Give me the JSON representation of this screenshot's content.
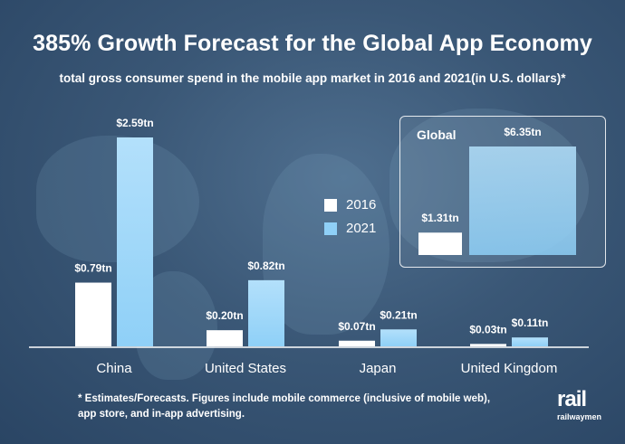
{
  "title": "385% Growth Forecast for the Global App Economy",
  "subtitle": "total gross consumer spend in the mobile app market in 2016 and 2021(in U.S. dollars)*",
  "footnote_line1": "* Estimates/Forecasts. Figures include mobile commerce (inclusive of mobile web),",
  "footnote_line2": "app store, and in-app advertising.",
  "logo": {
    "mark": "rail",
    "text": "railwaymen"
  },
  "colors": {
    "y2016": "#ffffff",
    "y2021": "#8fd0f7",
    "y2021_top": "#b3e0fb"
  },
  "chart_data": [
    {
      "type": "bar",
      "title": "",
      "categories": [
        "China",
        "United States",
        "Japan",
        "United Kingdom"
      ],
      "series": [
        {
          "name": "2016",
          "values": [
            0.79,
            0.2,
            0.07,
            0.03
          ],
          "labels": [
            "$0.79tn",
            "$0.20tn",
            "$0.07tn",
            "$0.03tn"
          ]
        },
        {
          "name": "2021",
          "values": [
            2.59,
            0.82,
            0.21,
            0.11
          ],
          "labels": [
            "$2.59tn",
            "$0.82tn",
            "$0.21tn",
            "$0.11tn"
          ]
        }
      ],
      "ylim": [
        0,
        2.59
      ],
      "legend": "center-right",
      "grid": false
    },
    {
      "type": "bar",
      "title": "Global",
      "categories": [
        "Global"
      ],
      "series": [
        {
          "name": "2016",
          "values": [
            1.31
          ],
          "labels": [
            "$1.31tn"
          ]
        },
        {
          "name": "2021",
          "values": [
            6.35
          ],
          "labels": [
            "$6.35tn"
          ]
        }
      ],
      "ylim": [
        0,
        6.35
      ],
      "grid": false
    }
  ]
}
